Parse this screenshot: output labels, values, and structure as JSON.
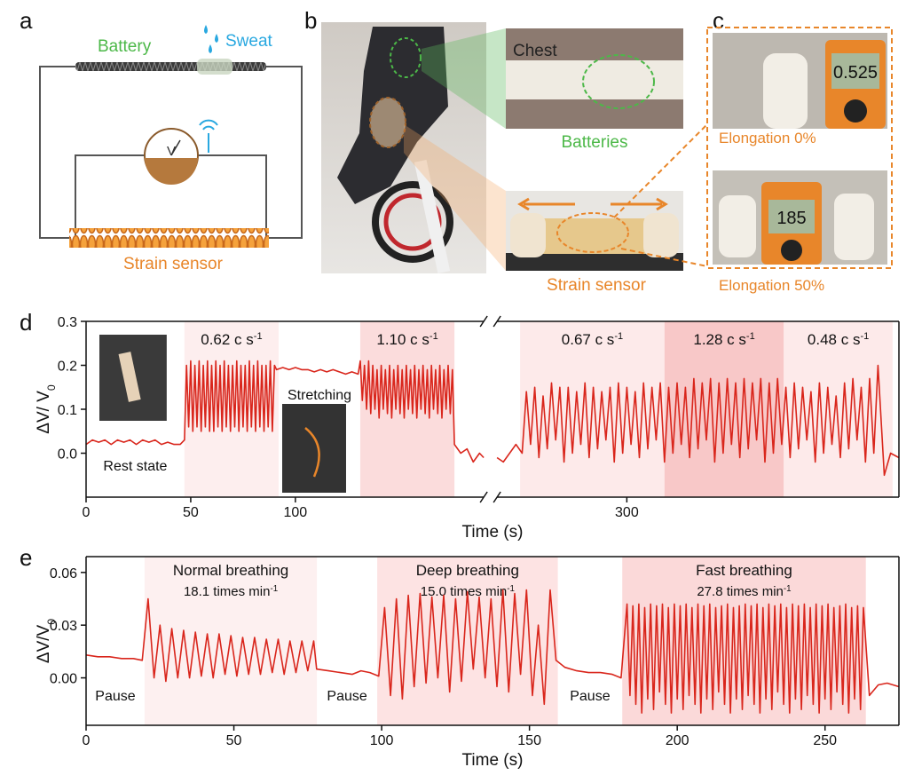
{
  "panels": {
    "a": {
      "letter": "a",
      "battery": "Battery",
      "sweat": "Sweat",
      "meter": "V",
      "sensor": "Strain sensor"
    },
    "b": {
      "letter": "b",
      "chest": "Chest",
      "batteries": "Batteries",
      "sensor": "Strain sensor"
    },
    "c": {
      "letter": "c",
      "reading_0": "0.525",
      "reading_50": "185",
      "caption_0": "Elongation 0%",
      "caption_50": "Elongation 50%"
    }
  },
  "chart_data": [
    {
      "type": "line",
      "panel": "d",
      "xlabel": "Time (s)",
      "ylabel": {
        "text": "ΔV/ V",
        "sub": "0"
      },
      "xlim": [
        0,
        430
      ],
      "xbreak": [
        190,
        238
      ],
      "xticks": [
        0,
        50,
        100,
        300
      ],
      "ylim": [
        -0.1,
        0.3
      ],
      "yticks": [
        {
          "value": 0,
          "label": "0.0"
        },
        0.1,
        0.2,
        0.3
      ],
      "regions": [
        {
          "from": 47,
          "to": 92,
          "color": "#fdeeee",
          "label": {
            "text": "0.62 c s",
            "sup": "-1"
          }
        },
        {
          "from": 131,
          "to": 176,
          "color": "#fbdcdc",
          "label": {
            "text": "1.10 c s",
            "sup": "-1"
          }
        },
        {
          "from": 249,
          "to": 318,
          "color": "#fdeaea",
          "label": {
            "text": "0.67 c s",
            "sup": "-1"
          }
        },
        {
          "from": 318,
          "to": 375,
          "color": "#f8c8c8",
          "label": {
            "text": "1.28 c s",
            "sup": "-1"
          }
        },
        {
          "from": 375,
          "to": 427,
          "color": "#fdeaea",
          "label": {
            "text": "0.48 c s",
            "sup": "-1"
          }
        }
      ],
      "annotations": [
        "Rest state",
        "Stretching"
      ],
      "x": [
        0,
        3,
        6,
        9,
        12,
        15,
        18,
        21,
        24,
        27,
        30,
        33,
        36,
        39,
        42,
        45,
        47,
        48,
        49,
        50,
        51,
        52,
        53,
        54,
        55,
        56,
        57,
        58,
        59,
        60,
        61,
        62,
        63,
        64,
        65,
        66,
        67,
        68,
        69,
        70,
        71,
        72,
        73,
        74,
        75,
        76,
        77,
        78,
        79,
        80,
        81,
        82,
        83,
        84,
        85,
        86,
        87,
        88,
        89,
        90,
        91,
        94,
        97,
        100,
        103,
        106,
        109,
        112,
        115,
        118,
        121,
        124,
        127,
        130,
        131,
        132,
        133,
        134,
        135,
        136,
        137,
        138,
        139,
        140,
        141,
        142,
        143,
        144,
        145,
        146,
        147,
        148,
        149,
        150,
        151,
        152,
        153,
        154,
        155,
        156,
        157,
        158,
        159,
        160,
        161,
        162,
        163,
        164,
        165,
        166,
        167,
        168,
        169,
        170,
        171,
        172,
        173,
        174,
        175,
        176,
        179,
        182,
        185,
        188,
        190,
        238,
        241,
        244,
        247,
        250,
        252,
        254,
        256,
        258,
        260,
        262,
        264,
        266,
        268,
        270,
        272,
        274,
        276,
        278,
        280,
        282,
        284,
        286,
        288,
        290,
        292,
        294,
        296,
        298,
        300,
        302,
        304,
        306,
        308,
        310,
        312,
        314,
        316,
        318,
        320,
        322,
        324,
        326,
        328,
        330,
        332,
        334,
        336,
        338,
        340,
        342,
        344,
        346,
        348,
        350,
        352,
        354,
        356,
        358,
        360,
        362,
        364,
        366,
        368,
        370,
        372,
        374,
        376,
        378,
        380,
        382,
        384,
        386,
        388,
        390,
        392,
        394,
        396,
        398,
        400,
        402,
        404,
        406,
        408,
        410,
        412,
        414,
        416,
        418,
        420,
        423,
        426,
        430
      ],
      "series": [
        {
          "color": "#d9261c",
          "values": [
            0.02,
            0.03,
            0.025,
            0.03,
            0.02,
            0.03,
            0.025,
            0.03,
            0.02,
            0.03,
            0.025,
            0.03,
            0.02,
            0.025,
            0.02,
            0.02,
            0.03,
            0.2,
            0.06,
            0.21,
            0.05,
            0.2,
            0.06,
            0.21,
            0.05,
            0.2,
            0.06,
            0.21,
            0.05,
            0.2,
            0.05,
            0.21,
            0.06,
            0.2,
            0.05,
            0.21,
            0.06,
            0.2,
            0.05,
            0.2,
            0.06,
            0.21,
            0.05,
            0.2,
            0.06,
            0.2,
            0.05,
            0.21,
            0.06,
            0.2,
            0.05,
            0.21,
            0.06,
            0.2,
            0.05,
            0.2,
            0.06,
            0.21,
            0.05,
            0.2,
            0.19,
            0.195,
            0.19,
            0.195,
            0.19,
            0.19,
            0.185,
            0.19,
            0.185,
            0.19,
            0.185,
            0.18,
            0.185,
            0.18,
            0.21,
            0.12,
            0.2,
            0.1,
            0.21,
            0.09,
            0.2,
            0.1,
            0.19,
            0.08,
            0.2,
            0.1,
            0.19,
            0.09,
            0.2,
            0.08,
            0.19,
            0.1,
            0.2,
            0.09,
            0.19,
            0.08,
            0.2,
            0.1,
            0.19,
            0.09,
            0.2,
            0.08,
            0.19,
            0.1,
            0.2,
            0.09,
            0.19,
            0.08,
            0.2,
            0.1,
            0.19,
            0.09,
            0.2,
            0.08,
            0.19,
            0.1,
            0.2,
            0.09,
            0.19,
            0.02,
            0.0,
            0.01,
            -0.02,
            0.0,
            -0.01,
            -0.01,
            -0.02,
            0.0,
            0.02,
            0.0,
            0.14,
            0.02,
            0.15,
            -0.01,
            0.13,
            0.01,
            0.16,
            0.03,
            0.15,
            -0.02,
            0.15,
            0.0,
            0.14,
            0.02,
            0.16,
            -0.01,
            0.15,
            0.01,
            0.14,
            0.03,
            0.15,
            -0.02,
            0.16,
            0.0,
            0.15,
            0.02,
            0.14,
            -0.01,
            0.16,
            0.01,
            0.15,
            0.03,
            0.16,
            -0.02,
            0.15,
            0.0,
            0.16,
            0.02,
            0.15,
            -0.01,
            0.17,
            0.01,
            0.16,
            0.03,
            0.17,
            -0.02,
            0.16,
            0.0,
            0.17,
            0.02,
            0.16,
            -0.01,
            0.17,
            0.01,
            0.16,
            0.03,
            0.17,
            -0.02,
            0.16,
            0.0,
            0.17,
            0.02,
            0.15,
            -0.01,
            0.16,
            0.01,
            0.15,
            0.03,
            0.14,
            -0.02,
            0.16,
            0.0,
            0.15,
            0.02,
            0.13,
            -0.01,
            0.16,
            0.01,
            0.17,
            0.03,
            0.15,
            -0.02,
            0.17,
            0.0,
            0.2,
            -0.05,
            0.0,
            -0.01
          ]
        }
      ]
    },
    {
      "type": "line",
      "panel": "e",
      "xlabel": "Time (s)",
      "ylabel": {
        "text": "ΔV/V",
        "sub": "0"
      },
      "xlim": [
        0,
        275
      ],
      "xticks": [
        0,
        50,
        100,
        150,
        200,
        250
      ],
      "ylim": [
        -0.027,
        0.069
      ],
      "yticks": [
        {
          "value": 0,
          "label": "0.00"
        },
        0.03,
        0.06
      ],
      "regions": [
        {
          "from": 19.8,
          "to": 78.1,
          "color": "#fdf0f0",
          "label": "Normal breathing",
          "sublabel": {
            "text": "18.1 times min",
            "sup": "-1"
          }
        },
        {
          "from": 98.5,
          "to": 159.6,
          "color": "#fde3e3",
          "label": "Deep breathing",
          "sublabel": {
            "text": "15.0 times min",
            "sup": "-1"
          }
        },
        {
          "from": 181.4,
          "to": 263.8,
          "color": "#fbd9d9",
          "label": "Fast breathing",
          "sublabel": {
            "text": "27.8 times min",
            "sup": "-1"
          }
        }
      ],
      "annotations": [
        "Pause",
        "Pause",
        "Pause"
      ],
      "x": [
        0,
        4,
        8,
        12,
        16,
        19,
        21,
        23,
        25,
        27,
        29,
        31,
        33,
        35,
        37,
        39,
        41,
        43,
        45,
        47,
        49,
        51,
        53,
        55,
        57,
        59,
        61,
        63,
        65,
        67,
        69,
        71,
        73,
        75,
        77,
        78,
        82,
        86,
        90,
        93,
        96,
        99,
        101,
        103,
        105,
        107,
        109,
        111,
        113,
        115,
        117,
        119,
        121,
        123,
        125,
        127,
        129,
        131,
        133,
        135,
        137,
        139,
        141,
        143,
        145,
        147,
        149,
        151,
        153,
        155,
        157,
        159,
        162,
        166,
        170,
        174,
        178,
        181,
        183,
        184,
        185,
        186,
        187,
        188,
        189,
        190,
        191,
        192,
        193,
        194,
        195,
        196,
        197,
        198,
        199,
        200,
        201,
        202,
        203,
        204,
        205,
        206,
        207,
        208,
        209,
        210,
        211,
        212,
        213,
        214,
        215,
        216,
        217,
        218,
        219,
        220,
        221,
        222,
        223,
        224,
        225,
        226,
        227,
        228,
        229,
        230,
        231,
        232,
        233,
        234,
        235,
        236,
        237,
        238,
        239,
        240,
        241,
        242,
        243,
        244,
        245,
        246,
        247,
        248,
        249,
        250,
        251,
        252,
        253,
        254,
        255,
        256,
        257,
        258,
        259,
        260,
        261,
        262,
        263,
        265,
        268,
        271,
        275
      ],
      "series": [
        {
          "color": "#d9261c",
          "values": [
            0.013,
            0.012,
            0.012,
            0.011,
            0.011,
            0.01,
            0.045,
            0.0,
            0.03,
            -0.002,
            0.028,
            0.0,
            0.027,
            0.0,
            0.026,
            0.001,
            0.025,
            0.0,
            0.025,
            0.002,
            0.024,
            0.001,
            0.023,
            0.002,
            0.023,
            0.002,
            0.022,
            0.003,
            0.022,
            0.002,
            0.021,
            0.003,
            0.021,
            0.004,
            0.021,
            0.005,
            0.004,
            0.003,
            0.002,
            0.004,
            0.003,
            0.001,
            0.04,
            -0.01,
            0.045,
            -0.012,
            0.047,
            -0.005,
            0.048,
            -0.003,
            0.046,
            0.0,
            0.047,
            -0.008,
            0.045,
            -0.002,
            0.049,
            0.005,
            0.046,
            0.0,
            0.045,
            -0.005,
            0.05,
            -0.008,
            0.048,
            0.002,
            0.05,
            -0.01,
            0.03,
            -0.015,
            0.05,
            0.01,
            0.006,
            0.004,
            0.003,
            0.003,
            0.002,
            0.0,
            0.042,
            -0.01,
            0.041,
            -0.015,
            0.042,
            -0.02,
            0.04,
            -0.012,
            0.042,
            -0.018,
            0.041,
            -0.008,
            0.042,
            -0.015,
            0.04,
            -0.02,
            0.042,
            -0.012,
            0.041,
            -0.018,
            0.042,
            -0.01,
            0.04,
            -0.015,
            0.042,
            -0.02,
            0.041,
            -0.012,
            0.042,
            -0.018,
            0.04,
            -0.008,
            0.041,
            -0.015,
            0.042,
            -0.02,
            0.04,
            -0.012,
            0.041,
            -0.018,
            0.042,
            -0.01,
            0.041,
            -0.015,
            0.042,
            -0.02,
            0.04,
            -0.012,
            0.042,
            -0.018,
            0.041,
            -0.008,
            0.042,
            -0.015,
            0.04,
            -0.02,
            0.042,
            -0.012,
            0.041,
            -0.018,
            0.042,
            -0.01,
            0.04,
            -0.015,
            0.042,
            -0.02,
            0.041,
            -0.012,
            0.042,
            -0.018,
            0.04,
            -0.008,
            0.041,
            -0.015,
            0.042,
            -0.02,
            0.04,
            -0.012,
            0.041,
            -0.018,
            0.04,
            -0.01,
            -0.004,
            -0.003,
            -0.005
          ]
        }
      ]
    }
  ]
}
